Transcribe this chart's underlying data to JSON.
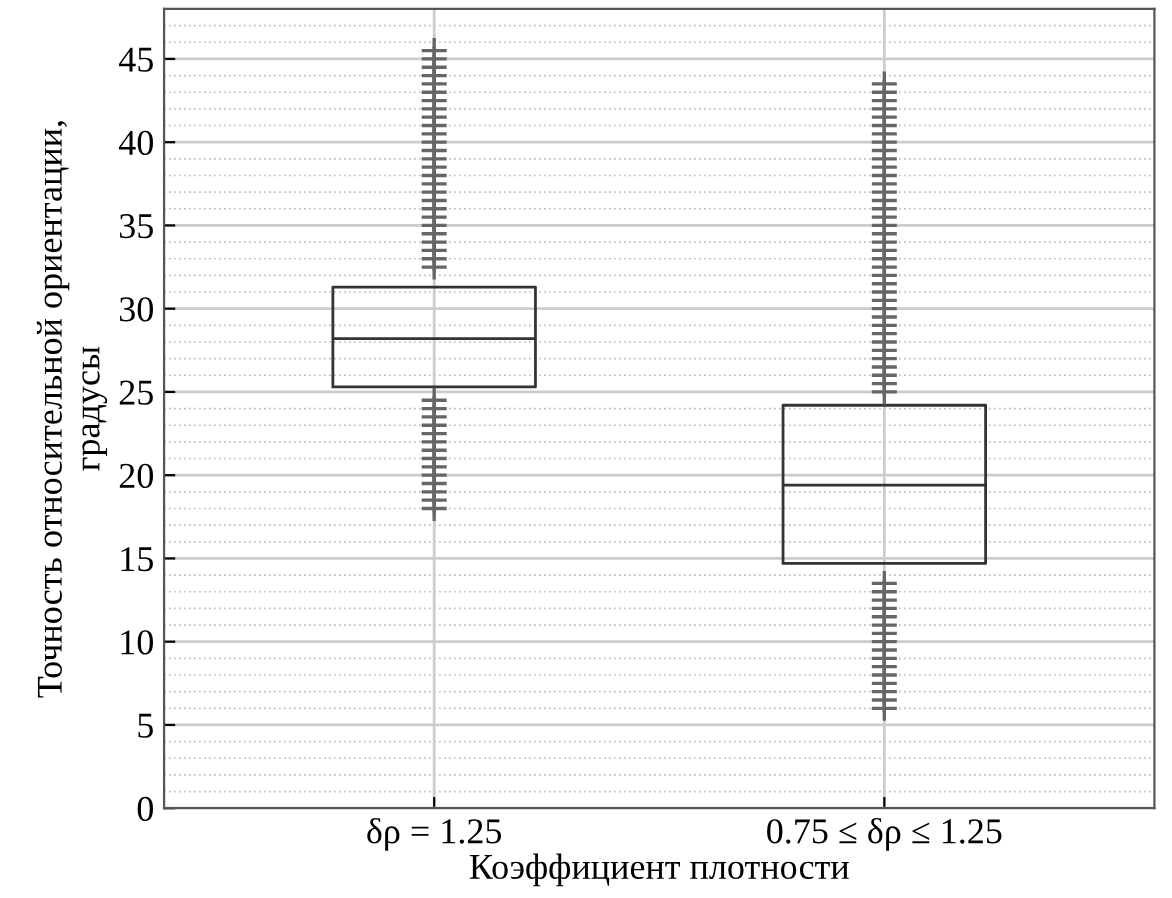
{
  "chart_data": {
    "type": "box",
    "xlabel": "Коэффициент плотности",
    "ylabel": "Точность относительной ориентации,\nградусы",
    "categories": [
      "δρ = 1.25",
      "0.75 ≤ δρ ≤ 1.25"
    ],
    "boxes": [
      {
        "low": 25.3,
        "q1": 25.3,
        "median": 28.2,
        "q3": 31.3,
        "high": 31.3,
        "outliers": [
          18,
          18.5,
          19,
          19.5,
          20,
          20.5,
          21,
          21.5,
          22,
          22.5,
          23,
          23.5,
          24,
          24.5,
          32.5,
          33,
          33.5,
          34,
          34.5,
          35,
          35.5,
          36,
          36.5,
          37,
          37.5,
          38,
          38.5,
          39,
          39.5,
          40,
          40.5,
          41,
          41.5,
          42,
          42.5,
          43,
          43.5,
          44,
          44.5,
          45,
          45.5
        ]
      },
      {
        "low": 14.7,
        "q1": 14.7,
        "median": 19.4,
        "q3": 24.2,
        "high": 24.2,
        "outliers": [
          6,
          6.5,
          7,
          7.5,
          8,
          8.5,
          9,
          9.5,
          10,
          10.5,
          11,
          11.5,
          12,
          12.5,
          13,
          13.5,
          25,
          25.5,
          26,
          26.5,
          27,
          27.5,
          28,
          28.5,
          29,
          29.5,
          30,
          30.5,
          31,
          31.5,
          32,
          32.5,
          33,
          33.5,
          34,
          34.5,
          35,
          35.5,
          36,
          36.5,
          37,
          37.5,
          38,
          38.5,
          39,
          39.5,
          40,
          40.5,
          41,
          41.5,
          42,
          42.5,
          43,
          43.5
        ]
      }
    ],
    "ylim": [
      0,
      48
    ],
    "yticks": [
      0,
      5,
      10,
      15,
      20,
      25,
      30,
      35,
      40,
      45
    ],
    "grid": true
  }
}
